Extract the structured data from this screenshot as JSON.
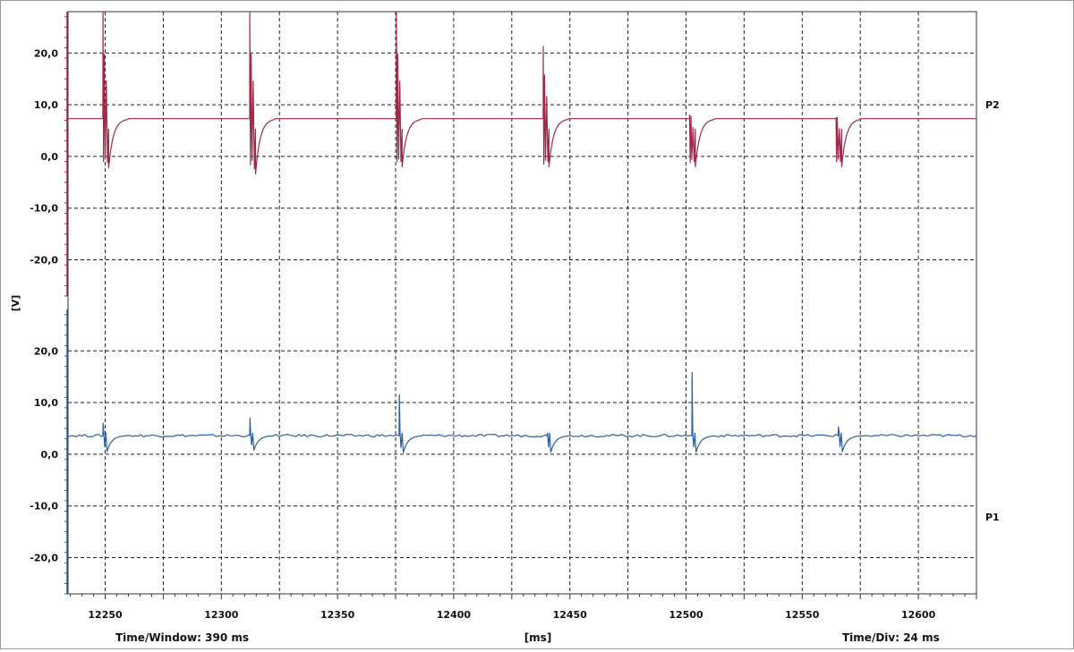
{
  "chart_data": {
    "type": "line",
    "ylabel": "[V]",
    "xlabel": "[ms]",
    "time_window": "Time/Window: 390 ms",
    "time_div": "Time/Div: 24 ms",
    "xlim": [
      12234,
      12625
    ],
    "x_ticks": [
      12250,
      12300,
      12350,
      12400,
      12450,
      12500,
      12550,
      12600
    ],
    "x_tick_labels": [
      "12250",
      "12300",
      "12350",
      "12400",
      "12450",
      "12500",
      "12550",
      "12600"
    ],
    "grid": true,
    "colors": {
      "P2": "#a0294a",
      "P1": "#2a5fa3",
      "grid": "#222222"
    },
    "panels": [
      {
        "name": "P2",
        "ylim": [
          -27,
          28
        ],
        "y_ticks": [
          20,
          10,
          0,
          -10,
          -20
        ],
        "y_tick_labels": [
          "20,0",
          "10,0",
          "0,0",
          "-10,0",
          "-20,0"
        ],
        "series": [
          {
            "name": "P2",
            "baseline": 7.3,
            "pulses": [
              {
                "t": 12249.0,
                "peak": 28,
                "dips": [
                  -1.0,
                  -1.2
                ]
              },
              {
                "t": 12312.2,
                "peak": 28,
                "dips": [
                  -1.6,
                  -2.4
                ]
              },
              {
                "t": 12375.3,
                "peak": 28,
                "dips": [
                  -1.0,
                  -1.0
                ]
              },
              {
                "t": 12438.5,
                "peak": 21.3,
                "dips": [
                  -1.5,
                  -1.0
                ]
              },
              {
                "t": 12501.5,
                "peak": 8.0,
                "dips": [
                  -1.2,
                  -1.0
                ]
              },
              {
                "t": 12564.5,
                "peak": 7.5,
                "dips": [
                  -1.0,
                  -1.0
                ]
              }
            ]
          }
        ]
      },
      {
        "name": "P1",
        "ylim": [
          -27,
          28
        ],
        "y_ticks": [
          20,
          10,
          0,
          -10,
          -20
        ],
        "y_tick_labels": [
          "20,0",
          "10,0",
          "0,0",
          "-10,0",
          "-20,0"
        ],
        "series": [
          {
            "name": "P1",
            "baseline": 3.6,
            "pulses": [
              {
                "t": 12249.0,
                "peak": 6.0,
                "dips": [
                  0.5
                ]
              },
              {
                "t": 12312.2,
                "peak": 7.0,
                "dips": [
                  0.8
                ]
              },
              {
                "t": 12376.5,
                "peak": 11.5,
                "dips": [
                  0.3
                ]
              },
              {
                "t": 12440.0,
                "peak": 3.5,
                "dips": [
                  0.4
                ]
              },
              {
                "t": 12502.5,
                "peak": 15.8,
                "dips": [
                  0.4
                ]
              },
              {
                "t": 12565.5,
                "peak": 5.3,
                "dips": [
                  0.5
                ]
              }
            ]
          }
        ]
      }
    ]
  }
}
